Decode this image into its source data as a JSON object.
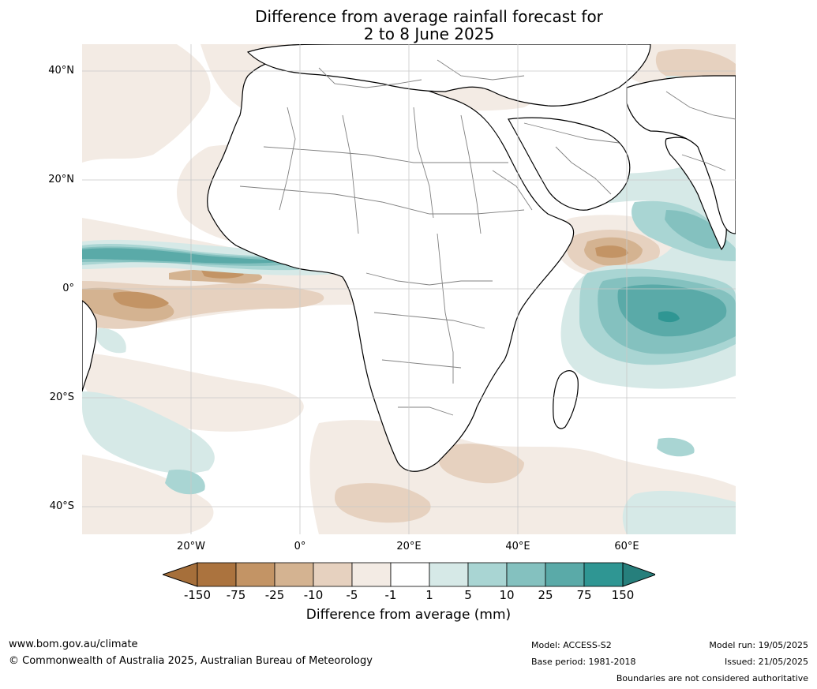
{
  "title": {
    "line1": "Difference from average rainfall forecast for",
    "line2": "2 to 8 June 2025"
  },
  "axes": {
    "lat_labels": [
      "40°N",
      "20°N",
      "0°",
      "20°S",
      "40°S"
    ],
    "lon_labels": [
      "20°W",
      "0°",
      "20°E",
      "40°E",
      "60°E"
    ]
  },
  "colorbar": {
    "title": "Difference from average (mm)",
    "ticks": [
      "-150",
      "-75",
      "-25",
      "-10",
      "-5",
      "-1",
      "1",
      "5",
      "10",
      "25",
      "75",
      "150"
    ],
    "colors": [
      "#a66f3a",
      "#ab733e",
      "#c39465",
      "#d4b391",
      "#e6d1bf",
      "#f3ebe4",
      "#ffffff",
      "#d6e9e7",
      "#a9d5d3",
      "#84c1bf",
      "#5aaaa8",
      "#2f9693",
      "#267f7c"
    ]
  },
  "colors": {
    "land": "#ffffff",
    "coast": "#000000",
    "borders": "#808080",
    "grid": "#c8c8c8"
  },
  "footer": {
    "website": "www.bom.gov.au/climate",
    "copyright": "© Commonwealth of Australia 2025, Australian Bureau of Meteorology",
    "model": "Model: ACCESS-S2",
    "base_period": "Base period: 1981-2018",
    "model_run": "Model run: 19/05/2025",
    "issued": "Issued: 21/05/2025",
    "disclaimer": "Boundaries are not considered authoritative"
  }
}
